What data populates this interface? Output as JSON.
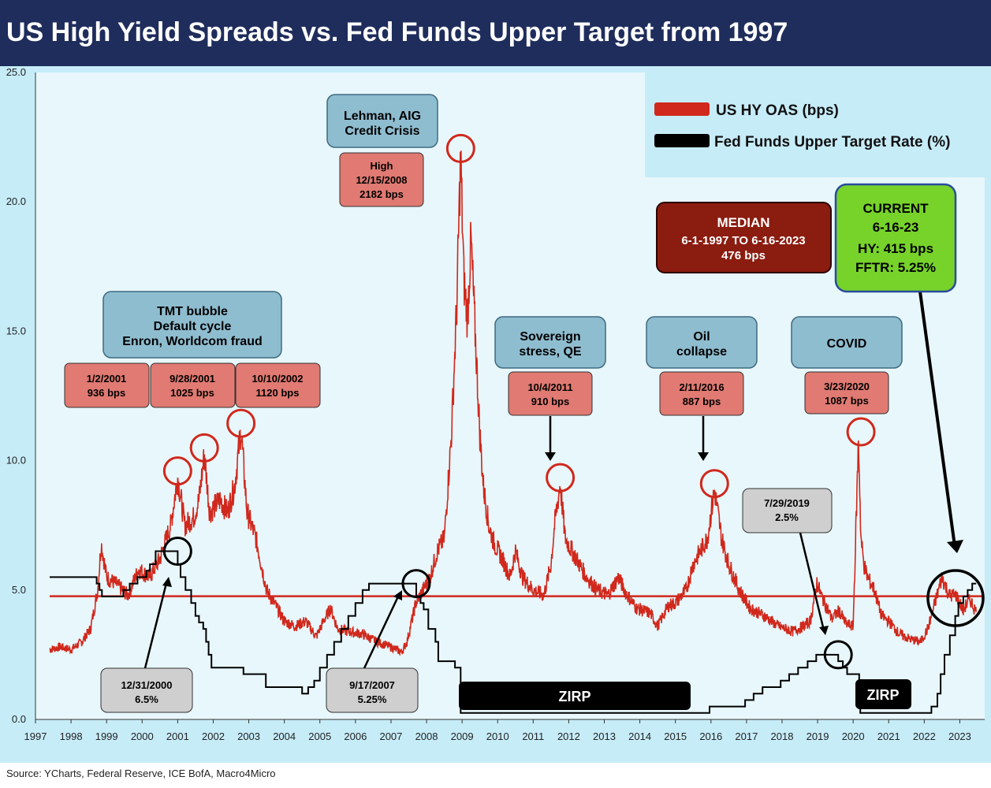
{
  "header": {
    "title": "US High Yield Spreads vs. Fed Funds Upper Target from 1997"
  },
  "footer": {
    "source": "Source: YCharts, Federal Reserve, ICE BofA, Macro4Micro"
  },
  "colors": {
    "header_bg": "#1f2d5c",
    "plot_bg": "#e8f7fb",
    "outer_bg": "#c6ecf8",
    "hy": "#d0281c",
    "fed": "#000000",
    "blue_box": "#8fbdd0",
    "red_box": "#e07a72",
    "gray_box": "#cfcfcf",
    "median_box": "#8b1c10",
    "current_box": "#77d32a"
  },
  "legend": {
    "hy_label": "US HY OAS (bps)",
    "fed_label": "Fed Funds Upper Target Rate (%)"
  },
  "annotations": {
    "tmt_line1": "TMT bubble",
    "tmt_line2": "Default cycle",
    "tmt_line3": "Enron, Worldcom fraud",
    "lehman_line1": "Lehman, AIG",
    "lehman_line2": "Credit Crisis",
    "sovereign_line1": "Sovereign",
    "sovereign_line2": "stress, QE",
    "oil_line1": "Oil",
    "oil_line2": "collapse",
    "covid": "COVID",
    "peak_2001a_date": "1/2/2001",
    "peak_2001a_value": "936 bps",
    "peak_2001b_date": "9/28/2001",
    "peak_2001b_value": "1025 bps",
    "peak_2002_date": "10/10/2002",
    "peak_2002_value": "1120 bps",
    "peak_2008_line1": "High",
    "peak_2008_date": "12/15/2008",
    "peak_2008_value": "2182 bps",
    "peak_2011_date": "10/4/2011",
    "peak_2011_value": "910 bps",
    "peak_2016_date": "2/11/2016",
    "peak_2016_value": "887 bps",
    "peak_2020_date": "3/23/2020",
    "peak_2020_value": "1087 bps",
    "median_line1": "MEDIAN",
    "median_line2": "6-1-1997 TO 6-16-2023",
    "median_line3": "476 bps",
    "current_line1": "CURRENT",
    "current_line2": "6-16-23",
    "current_line3": "HY: 415 bps",
    "current_line4": "FFTR: 5.25%",
    "fed2000_date": "12/31/2000",
    "fed2000_value": "6.5%",
    "fed2007_date": "9/17/2007",
    "fed2007_value": "5.25%",
    "fed2019_date": "7/29/2019",
    "fed2019_value": "2.5%",
    "zirp1": "ZIRP",
    "zirp2": "ZIRP"
  },
  "chart_data": {
    "type": "line",
    "title": "US High Yield Spreads vs. Fed Funds Upper Target from 1997",
    "ylim": [
      0,
      25
    ],
    "yticks": [
      "0.0",
      "5.0",
      "10.0",
      "15.0",
      "20.0",
      "25.0"
    ],
    "xlim": [
      1997,
      2023.5
    ],
    "xticks": [
      "1997",
      "1998",
      "1999",
      "2000",
      "2001",
      "2002",
      "2003",
      "2004",
      "2005",
      "2006",
      "2007",
      "2008",
      "2009",
      "2010",
      "2011",
      "2012",
      "2013",
      "2014",
      "2015",
      "2016",
      "2017",
      "2018",
      "2019",
      "2020",
      "2021",
      "2022",
      "2023"
    ],
    "median": 4.76,
    "series": [
      {
        "name": "US HY OAS (bps)",
        "x": [
          1997.4,
          1997.7,
          1998.0,
          1998.3,
          1998.55,
          1998.75,
          1998.85,
          1999.0,
          1999.3,
          1999.6,
          1999.9,
          2000.2,
          2000.5,
          2000.8,
          2001.0,
          2001.2,
          2001.45,
          2001.6,
          2001.75,
          2001.9,
          2002.2,
          2002.4,
          2002.6,
          2002.78,
          2002.95,
          2003.2,
          2003.5,
          2003.8,
          2004.0,
          2004.3,
          2004.6,
          2004.9,
          2005.1,
          2005.3,
          2005.5,
          2005.8,
          2006.2,
          2006.6,
          2007.0,
          2007.3,
          2007.45,
          2007.7,
          2007.9,
          2008.1,
          2008.3,
          2008.5,
          2008.7,
          2008.85,
          2008.96,
          2009.05,
          2009.15,
          2009.25,
          2009.4,
          2009.5,
          2009.6,
          2009.75,
          2009.9,
          2010.1,
          2010.35,
          2010.5,
          2010.7,
          2011.0,
          2011.3,
          2011.5,
          2011.6,
          2011.76,
          2011.9,
          2012.1,
          2012.3,
          2012.5,
          2012.8,
          2013.1,
          2013.4,
          2013.6,
          2013.9,
          2014.3,
          2014.5,
          2014.8,
          2015.0,
          2015.3,
          2015.5,
          2015.7,
          2015.9,
          2016.1,
          2016.3,
          2016.5,
          2016.8,
          2017.1,
          2017.5,
          2017.9,
          2018.3,
          2018.6,
          2018.8,
          2018.98,
          2019.1,
          2019.4,
          2019.6,
          2019.8,
          2020.0,
          2020.15,
          2020.22,
          2020.3,
          2020.4,
          2020.6,
          2020.8,
          2021.0,
          2021.3,
          2021.6,
          2021.9,
          2022.1,
          2022.3,
          2022.5,
          2022.7,
          2022.9,
          2023.1,
          2023.2,
          2023.3,
          2023.46
        ],
        "values": [
          2.7,
          2.8,
          2.7,
          3.0,
          3.5,
          5.0,
          6.8,
          5.5,
          5.2,
          4.8,
          5.8,
          5.5,
          6.2,
          7.5,
          9.36,
          7.5,
          7.8,
          8.5,
          10.25,
          8.0,
          8.5,
          8.0,
          9.0,
          11.2,
          8.0,
          7.0,
          5.0,
          4.3,
          3.8,
          3.6,
          3.8,
          3.2,
          3.8,
          4.3,
          3.5,
          3.4,
          3.3,
          3.0,
          2.8,
          2.6,
          3.0,
          4.5,
          5.0,
          5.5,
          6.5,
          7.0,
          11.0,
          16.0,
          21.82,
          17.0,
          15.5,
          18.5,
          14.0,
          11.0,
          9.0,
          7.5,
          6.8,
          6.3,
          5.5,
          6.5,
          5.5,
          5.0,
          4.8,
          6.0,
          7.5,
          9.1,
          7.0,
          6.5,
          6.0,
          5.5,
          5.0,
          4.8,
          5.5,
          4.9,
          4.3,
          4.1,
          3.6,
          4.4,
          4.5,
          5.0,
          6.0,
          6.5,
          7.0,
          8.87,
          7.0,
          6.0,
          5.0,
          4.3,
          4.0,
          3.6,
          3.4,
          3.6,
          3.8,
          5.3,
          4.8,
          3.9,
          4.2,
          3.7,
          3.6,
          10.87,
          7.0,
          6.0,
          5.5,
          5.0,
          4.0,
          3.8,
          3.3,
          3.1,
          3.0,
          3.5,
          4.5,
          5.5,
          4.8,
          4.8,
          4.2,
          4.5,
          4.6,
          4.15
        ]
      },
      {
        "name": "Fed Funds Upper Target Rate (%)",
        "x": [
          1997.4,
          1998.72,
          1998.8,
          1998.87,
          1999.47,
          1999.65,
          1999.87,
          2000.12,
          2000.22,
          2000.38,
          2001.0,
          2001.08,
          2001.22,
          2001.38,
          2001.5,
          2001.6,
          2001.72,
          2001.8,
          2001.87,
          2001.95,
          2002.85,
          2003.48,
          2004.5,
          2004.67,
          2004.84,
          2005.0,
          2005.2,
          2005.4,
          2005.6,
          2005.8,
          2006.0,
          2006.2,
          2006.38,
          2006.5,
          2007.71,
          2007.83,
          2007.92,
          2008.05,
          2008.25,
          2008.33,
          2008.8,
          2008.96,
          2015.96,
          2016.96,
          2017.2,
          2017.45,
          2017.96,
          2018.2,
          2018.45,
          2018.72,
          2018.96,
          2019.58,
          2019.71,
          2019.83,
          2020.17,
          2020.2,
          2022.2,
          2022.37,
          2022.46,
          2022.57,
          2022.72,
          2022.87,
          2022.96,
          2023.1,
          2023.22,
          2023.35,
          2023.46
        ],
        "values": [
          5.5,
          5.25,
          5.0,
          4.75,
          5.0,
          5.25,
          5.5,
          5.75,
          6.0,
          6.5,
          6.0,
          5.5,
          5.0,
          4.5,
          4.0,
          3.75,
          3.5,
          3.0,
          2.5,
          2.0,
          1.75,
          1.25,
          1.0,
          1.25,
          1.5,
          2.0,
          2.5,
          3.0,
          3.5,
          4.0,
          4.5,
          5.0,
          5.25,
          5.25,
          4.75,
          4.5,
          4.25,
          3.5,
          3.0,
          2.25,
          2.0,
          0.25,
          0.5,
          0.75,
          1.0,
          1.25,
          1.5,
          1.75,
          2.0,
          2.25,
          2.5,
          2.25,
          2.0,
          1.75,
          1.5,
          0.25,
          0.5,
          1.0,
          1.75,
          2.5,
          3.25,
          4.0,
          4.5,
          4.75,
          5.0,
          5.25,
          5.25
        ]
      }
    ],
    "peaks": [
      {
        "x": 2001.0,
        "y": 9.36
      },
      {
        "x": 2001.75,
        "y": 10.25
      },
      {
        "x": 2002.78,
        "y": 11.2
      },
      {
        "x": 2008.96,
        "y": 21.82
      },
      {
        "x": 2011.76,
        "y": 9.1
      },
      {
        "x": 2016.1,
        "y": 8.87
      },
      {
        "x": 2020.22,
        "y": 10.87
      }
    ],
    "fed_markers": [
      {
        "x": 2001.0,
        "y": 6.5
      },
      {
        "x": 2007.71,
        "y": 5.25
      },
      {
        "x": 2019.58,
        "y": 2.5
      }
    ]
  }
}
